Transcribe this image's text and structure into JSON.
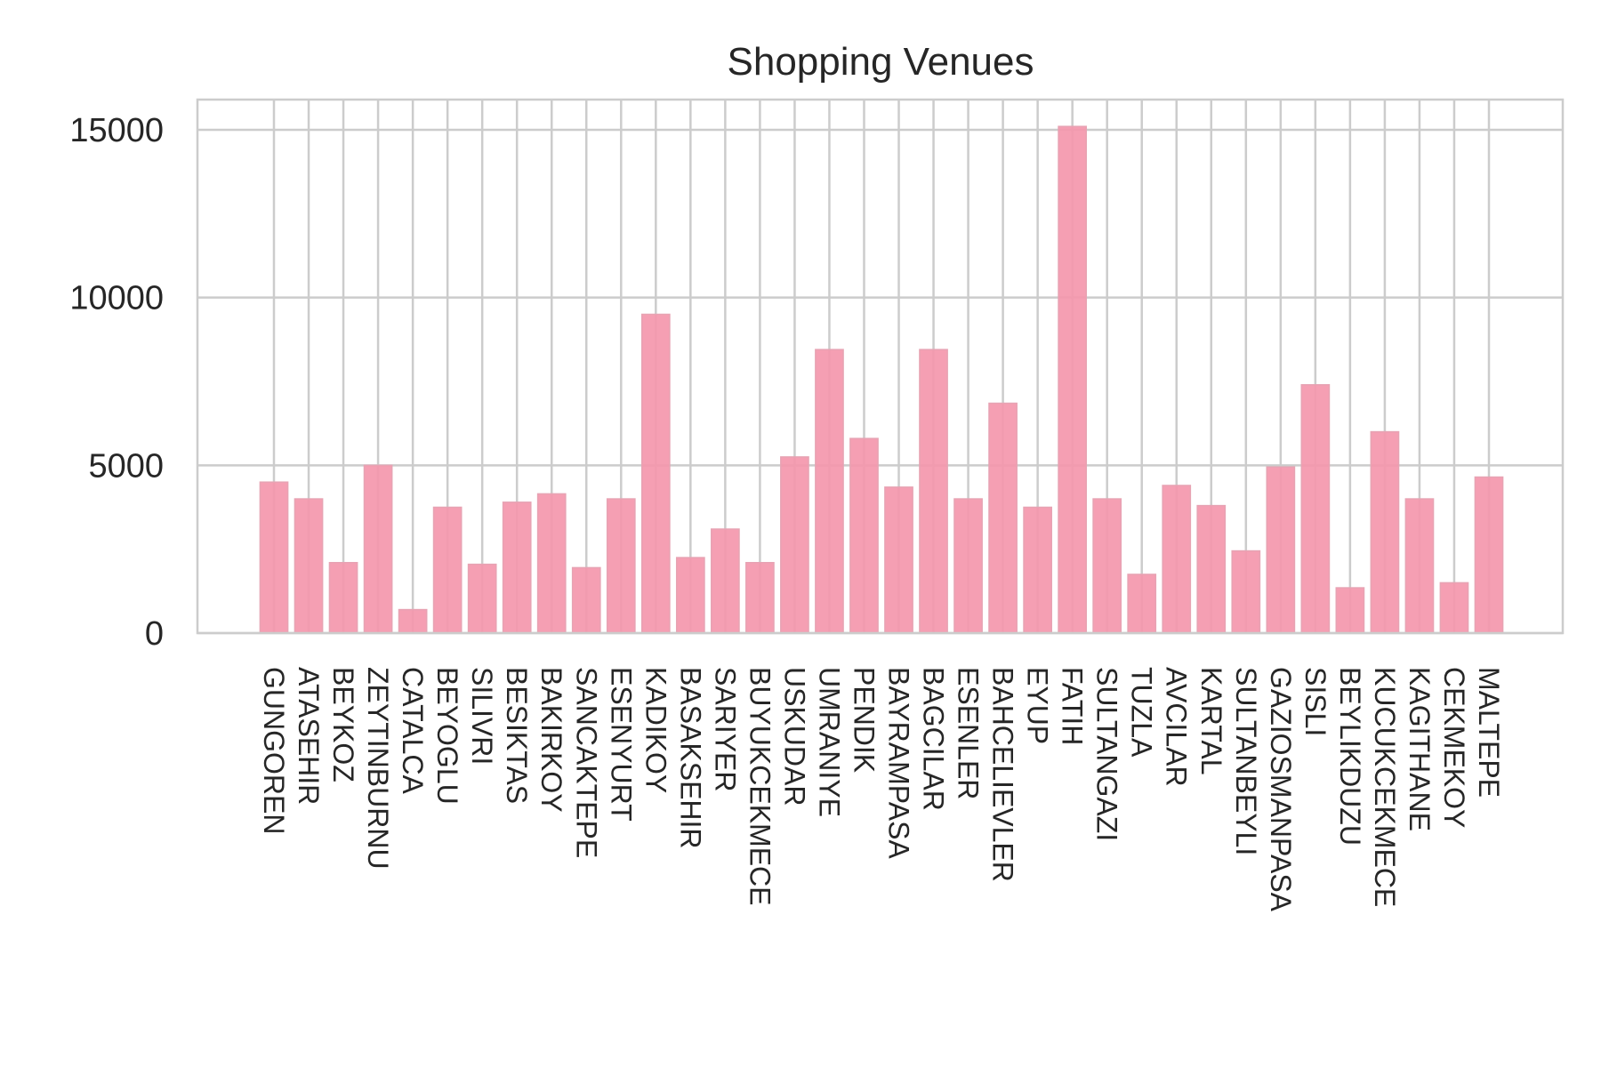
{
  "chart_data": {
    "type": "bar",
    "title": "Shopping Venues",
    "xlabel": "",
    "ylabel": "",
    "categories": [
      "GUNGOREN",
      "ATASEHIR",
      "BEYKOZ",
      "ZEYTINBURNU",
      "CATALCA",
      "BEYOGLU",
      "SILIVRI",
      "BESIKTAS",
      "BAKIRKOY",
      "SANCAKTEPE",
      "ESENYURT",
      "KADIKOY",
      "BASAKSEHIR",
      "SARIYER",
      "BUYUKCEKMECE",
      "USKUDAR",
      "UMRANIYE",
      "PENDIK",
      "BAYRAMPASA",
      "BAGCILAR",
      "ESENLER",
      "BAHCELIEVLER",
      "EYUP",
      "FATIH",
      "SULTANGAZI",
      "TUZLA",
      "AVCILAR",
      "KARTAL",
      "SULTANBEYLI",
      "GAZIOSMANPASA",
      "SISLI",
      "BEYLIKDUZU",
      "KUCUKCEKMECE",
      "KAGITHANE",
      "CEKMEKOY",
      "MALTEPE"
    ],
    "values": [
      4500,
      4000,
      2100,
      5000,
      700,
      3750,
      2050,
      3900,
      4150,
      1950,
      4000,
      9500,
      2250,
      3100,
      2100,
      5250,
      8450,
      5800,
      4350,
      8450,
      4000,
      6850,
      3750,
      15100,
      4000,
      1750,
      4400,
      3800,
      2450,
      4950,
      7400,
      1350,
      6000,
      4000,
      1500,
      4650
    ],
    "yticks": [
      0,
      5000,
      10000,
      15000
    ],
    "ylim": [
      0,
      15900
    ],
    "grid": true,
    "legend": "none",
    "bar_color": "#f497ad",
    "bar_edge_color": "#e7a3b3",
    "grid_color": "#cccccc",
    "text_color": "#262626"
  }
}
